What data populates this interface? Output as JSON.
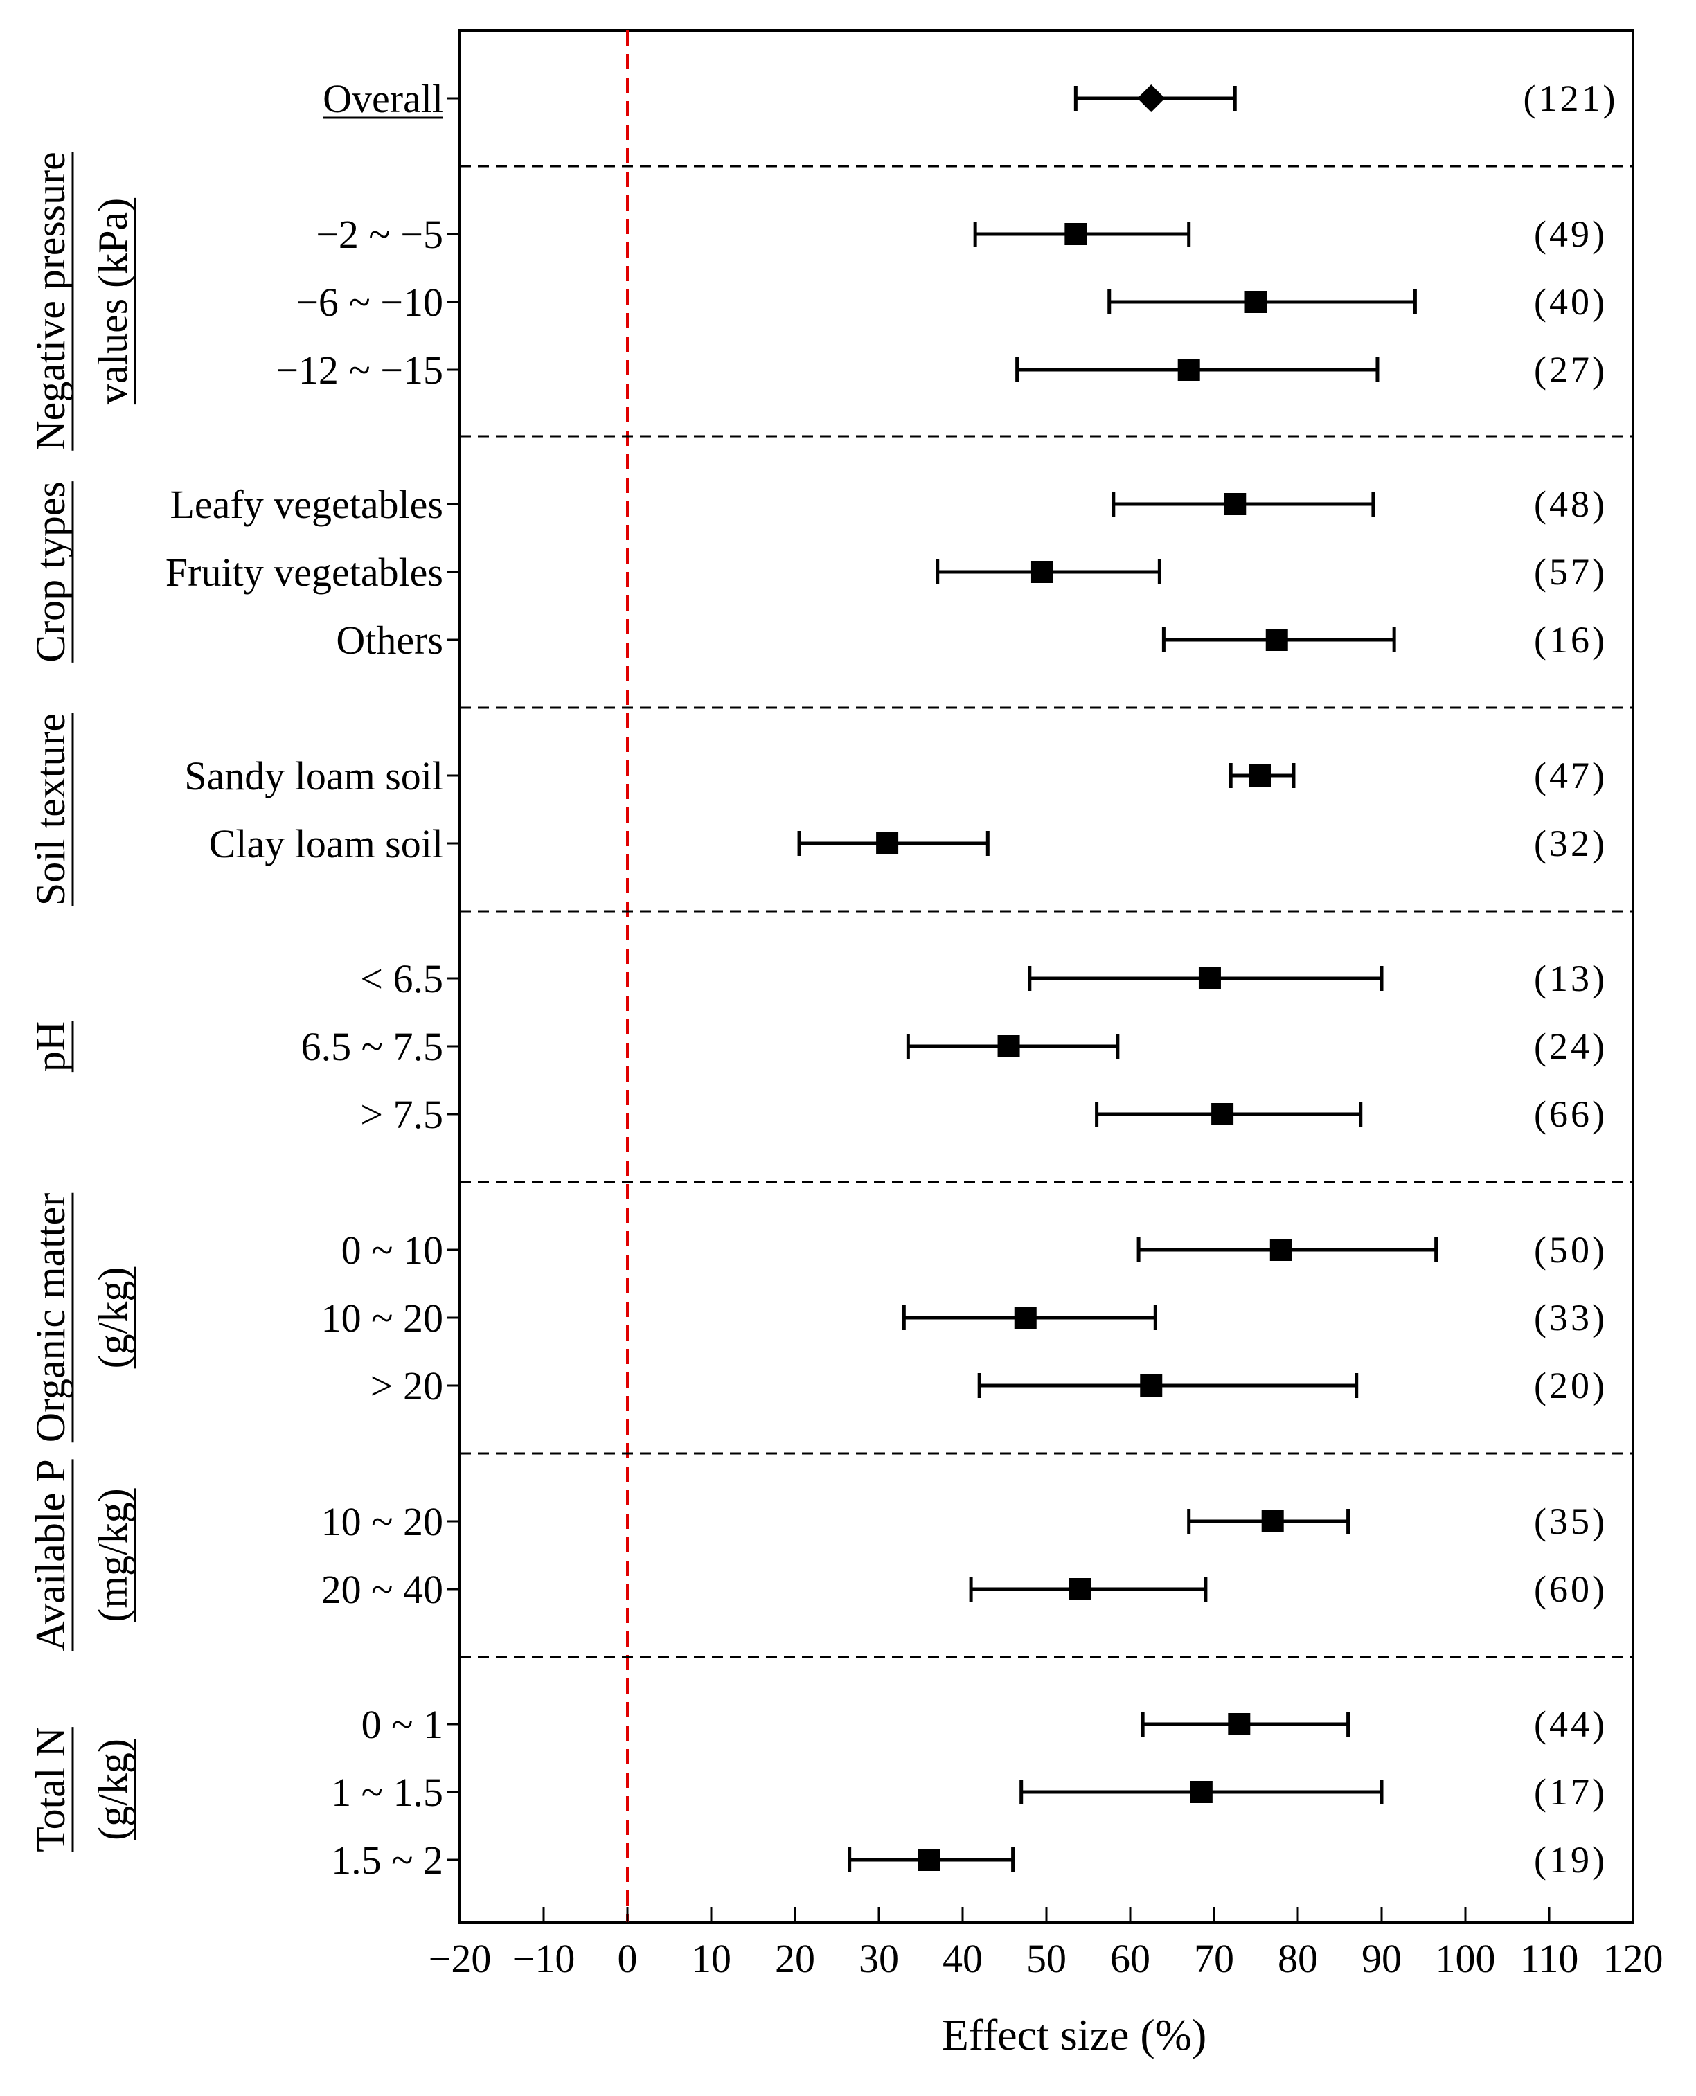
{
  "chart_data": {
    "type": "forest",
    "xlabel": "Effect size (%)",
    "xlim": [
      -20,
      120
    ],
    "xticks": [
      "-20",
      "-10",
      "0",
      "10",
      "20",
      "30",
      "40",
      "50",
      "60",
      "70",
      "80",
      "90",
      "100",
      "110",
      "120"
    ],
    "reference_line": 0,
    "groups": [
      {
        "title": [],
        "rows": [
          {
            "label": "Overall",
            "mean": 62.5,
            "low": 53.5,
            "high": 72.5,
            "n": "(121)",
            "marker": "diamond",
            "underline": true
          }
        ]
      },
      {
        "title": [
          "Negative pressure",
          "values (kPa)"
        ],
        "rows": [
          {
            "label": "−2 ~ −5",
            "mean": 53.5,
            "low": 41.5,
            "high": 67.0,
            "n": "(49)",
            "marker": "square"
          },
          {
            "label": "−6 ~ −10",
            "mean": 75.0,
            "low": 57.5,
            "high": 94.0,
            "n": "(40)",
            "marker": "square"
          },
          {
            "label": "−12 ~ −15",
            "mean": 67.0,
            "low": 46.5,
            "high": 89.5,
            "n": "(27)",
            "marker": "square"
          }
        ]
      },
      {
        "title": [
          "Crop types"
        ],
        "rows": [
          {
            "label": "Leafy vegetables",
            "mean": 72.5,
            "low": 58.0,
            "high": 89.0,
            "n": "(48)",
            "marker": "square"
          },
          {
            "label": "Fruity vegetables",
            "mean": 49.5,
            "low": 37.0,
            "high": 63.5,
            "n": "(57)",
            "marker": "square"
          },
          {
            "label": "Others",
            "mean": 77.5,
            "low": 64.0,
            "high": 91.5,
            "n": "(16)",
            "marker": "square"
          }
        ]
      },
      {
        "title": [
          "Soil texture"
        ],
        "rows": [
          {
            "label": "Sandy loam soil",
            "mean": 75.5,
            "low": 72.0,
            "high": 79.5,
            "n": "(47)",
            "marker": "square"
          },
          {
            "label": "Clay loam soil",
            "mean": 31.0,
            "low": 20.5,
            "high": 43.0,
            "n": "(32)",
            "marker": "square"
          }
        ]
      },
      {
        "title": [
          "pH"
        ],
        "rows": [
          {
            "label": "< 6.5",
            "mean": 69.5,
            "low": 48.0,
            "high": 90.0,
            "n": "(13)",
            "marker": "square"
          },
          {
            "label": "6.5 ~ 7.5",
            "mean": 45.5,
            "low": 33.5,
            "high": 58.5,
            "n": "(24)",
            "marker": "square"
          },
          {
            "label": "> 7.5",
            "mean": 71.0,
            "low": 56.0,
            "high": 87.5,
            "n": "(66)",
            "marker": "square"
          }
        ]
      },
      {
        "title": [
          "Organic matter",
          "(g/kg)"
        ],
        "rows": [
          {
            "label": "0 ~ 10",
            "mean": 78.0,
            "low": 61.0,
            "high": 96.5,
            "n": "(50)",
            "marker": "square"
          },
          {
            "label": "10 ~ 20",
            "mean": 47.5,
            "low": 33.0,
            "high": 63.0,
            "n": "(33)",
            "marker": "square"
          },
          {
            "label": "> 20",
            "mean": 62.5,
            "low": 42.0,
            "high": 87.0,
            "n": "(20)",
            "marker": "square"
          }
        ]
      },
      {
        "title": [
          "Available P",
          "(mg/kg)"
        ],
        "rows": [
          {
            "label": "10 ~ 20",
            "mean": 77.0,
            "low": 67.0,
            "high": 86.0,
            "n": "(35)",
            "marker": "square"
          },
          {
            "label": "20 ~ 40",
            "mean": 54.0,
            "low": 41.0,
            "high": 69.0,
            "n": "(60)",
            "marker": "square"
          }
        ]
      },
      {
        "title": [
          "Total N",
          "(g/kg)"
        ],
        "rows": [
          {
            "label": "0 ~ 1",
            "mean": 73.0,
            "low": 61.5,
            "high": 86.0,
            "n": "(44)",
            "marker": "square"
          },
          {
            "label": "1 ~ 1.5",
            "mean": 68.5,
            "low": 47.0,
            "high": 90.0,
            "n": "(17)",
            "marker": "square"
          },
          {
            "label": "1.5 ~ 2",
            "mean": 36.0,
            "low": 26.5,
            "high": 46.0,
            "n": "(19)",
            "marker": "square"
          }
        ]
      }
    ]
  }
}
